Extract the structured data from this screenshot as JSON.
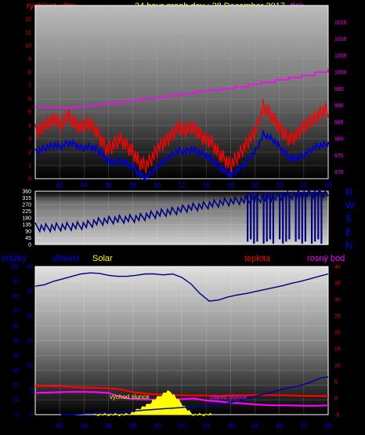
{
  "header": {
    "wind_label": "rychlost větru",
    "title": "24 hour graph day : 28 December 2017",
    "pressure_label": "tlak"
  },
  "direction_labels": [
    "N",
    "W",
    "S",
    "E",
    "N"
  ],
  "bottom_labels": {
    "rain": "srážky",
    "humidity": "vlhkost",
    "solar": "Solar",
    "temperature": "teplota",
    "dewpoint": "rosný bod"
  },
  "annotations": {
    "sunrise": "východ slunce",
    "sunset": "západ slunce"
  },
  "colors": {
    "wind_gust": "#ff0000",
    "wind_avg": "#0000cc",
    "pressure": "#ff00ff",
    "direction": "#000080",
    "humidity": "#000080",
    "temperature": "#ff0000",
    "dewpoint": "#ff00ff",
    "solar": "#ffff00",
    "rain": "#0000aa"
  },
  "chart_data": [
    {
      "type": "line",
      "title": "24 hour graph day : 28 December 2017",
      "x_ticks": [
        "02",
        "04",
        "06",
        "08",
        "10",
        "12",
        "14",
        "16",
        "18",
        "20",
        "22",
        "00"
      ],
      "left_axis": {
        "label": "rychlost větru",
        "ticks": [
          0,
          1,
          2,
          3,
          4,
          5,
          6,
          7,
          8,
          9,
          10,
          11,
          12
        ],
        "ylim": [
          0,
          13
        ]
      },
      "right_axis": {
        "label": "tlak",
        "ticks": [
          970,
          975,
          980,
          985,
          990,
          995,
          1000,
          1005,
          1010,
          1015
        ],
        "ylim": [
          968,
          1020
        ]
      },
      "series": [
        {
          "name": "",
          "axis": "left",
          "values": [
            3.5,
            3.8,
            4.2,
            4.5,
            4.0,
            4.8,
            4.2,
            3.8,
            4.2,
            3.9,
            3.0,
            2.2,
            2.5,
            3.0,
            2.5,
            2.0,
            1.2,
            1.0,
            1.6,
            2.4,
            2.8,
            3.3,
            3.9,
            3.6,
            3.9,
            3.5,
            3.0,
            2.8,
            2.0,
            1.5,
            1.0,
            1.6,
            2.3,
            3.0,
            3.8,
            5.4,
            4.9,
            4.2,
            3.5,
            3.0,
            3.2,
            3.8,
            4.2,
            4.6,
            5.0,
            5.2
          ]
        },
        {
          "name": "",
          "axis": "left",
          "values": [
            2.0,
            2.2,
            2.4,
            2.5,
            2.4,
            2.7,
            2.6,
            2.3,
            2.4,
            2.3,
            2.0,
            1.4,
            1.2,
            1.4,
            1.1,
            0.9,
            0.3,
            0.1,
            0.5,
            1.0,
            1.4,
            1.8,
            2.1,
            2.0,
            2.2,
            2.0,
            1.8,
            1.5,
            1.0,
            0.6,
            0.3,
            0.6,
            1.0,
            1.6,
            2.2,
            3.3,
            3.1,
            2.7,
            2.1,
            1.6,
            1.5,
            1.7,
            2.0,
            2.4,
            2.5,
            2.6
          ]
        },
        {
          "name": "",
          "axis": "right",
          "values": [
            989.5,
            989.3,
            989.2,
            989.6,
            990.0,
            990.5,
            991.0,
            991.5,
            992.0,
            992.5,
            993.0,
            993.5,
            994.2,
            994.6,
            995.0,
            995.6,
            996.3,
            997.0,
            997.7,
            998.4,
            999.0,
            1000.0,
            1001.0
          ]
        }
      ]
    },
    {
      "type": "scatter",
      "x_ticks": [
        "02",
        "04",
        "06",
        "08",
        "10",
        "12",
        "14",
        "16",
        "18",
        "20",
        "22",
        "00"
      ],
      "y_ticks": [
        0,
        45,
        90,
        135,
        180,
        225,
        270,
        315,
        360
      ],
      "ylim": [
        0,
        360
      ],
      "series": [
        {
          "name": "",
          "values": [
            120,
            112,
            115,
            118,
            121,
            124,
            128,
            135,
            150,
            158,
            165,
            170,
            172,
            176,
            182,
            195,
            205,
            214,
            222,
            232,
            245,
            252,
            258,
            268,
            276,
            285,
            290,
            296,
            300,
            305,
            310,
            315,
            320,
            328,
            332,
            338,
            340,
            342,
            344,
            345
          ]
        }
      ]
    },
    {
      "type": "line",
      "x_ticks": [
        "02",
        "04",
        "06",
        "08",
        "10",
        "12",
        "14",
        "16",
        "18",
        "20",
        "22",
        "00"
      ],
      "left_axis_rain": {
        "label": "srážky",
        "ticks": [
          0,
          10,
          20,
          30,
          40,
          50,
          60,
          70,
          80,
          90,
          100
        ],
        "ylim": [
          0,
          100
        ]
      },
      "left_axis_humidity": {
        "label": "vlhkost",
        "ticks": [
          0,
          5,
          10,
          15,
          20,
          25,
          30
        ],
        "ylim": [
          0,
          30
        ]
      },
      "right_axis": {
        "label": "teplota / rosný bod",
        "ticks": [
          -5,
          0,
          5,
          10,
          15,
          20,
          25,
          30,
          35,
          40
        ],
        "ylim": [
          -5,
          40
        ]
      },
      "series": [
        {
          "name": "vlhkost",
          "axis": "humidity",
          "values": [
            26.0,
            26.3,
            27.0,
            27.5,
            28.0,
            28.5,
            28.7,
            28.6,
            28.2,
            28.0,
            28.0,
            28.2,
            28.5,
            28.5,
            28.3,
            28.5,
            27.8,
            26.5,
            24.5,
            23.0,
            23.2,
            23.8,
            24.2,
            24.5,
            24.9,
            25.3,
            25.7,
            26.1,
            26.6,
            27.0,
            27.5,
            28.0,
            28.5
          ]
        },
        {
          "name": "teplota",
          "axis": "right",
          "values": [
            3.7,
            3.7,
            3.6,
            3.4,
            3.2,
            3.1,
            3.0,
            2.7,
            1.8,
            1.4,
            1.1,
            1.0,
            0.9,
            0.8,
            0.8,
            0.7,
            0.8,
            0.9,
            0.9,
            0.9,
            0.9,
            0.8,
            0.7,
            0.7,
            0.6
          ]
        },
        {
          "name": "rosný bod",
          "axis": "right",
          "values": [
            1.6,
            1.7,
            1.8,
            1.9,
            1.9,
            1.8,
            1.6,
            0.4,
            -0.3,
            -0.4,
            -0.4,
            -0.5,
            -0.3,
            -0.1,
            -0.7,
            -1.0,
            -1.4,
            -1.6,
            -1.9,
            -2.1,
            -2.2,
            -2.2,
            -2.3,
            -2.3,
            -2.2
          ]
        },
        {
          "name": "Solar",
          "axis": "solar",
          "values": [
            0,
            0,
            0,
            0,
            0,
            0,
            0,
            0,
            0.2,
            0.6,
            1.2,
            1.6,
            2.0,
            2.8,
            3.4,
            4.0,
            4.6,
            4.6,
            3.6,
            2.6,
            1.6,
            0.6,
            0,
            0,
            0,
            0,
            0
          ]
        },
        {
          "name": "srážky",
          "axis": "rain",
          "values": [
            0,
            0,
            0.3,
            0.7,
            1.0,
            1.3,
            1.6,
            2.0,
            2.3,
            2.7,
            3.2,
            3.6,
            4.0,
            4.4,
            4.8,
            5.2,
            5.6,
            6.0,
            6.5,
            7.2,
            8.5,
            10,
            11.5,
            13.0,
            14.5,
            16.0,
            17.5,
            18.8,
            20.0,
            22.0,
            24.5,
            25.5
          ]
        }
      ]
    }
  ]
}
